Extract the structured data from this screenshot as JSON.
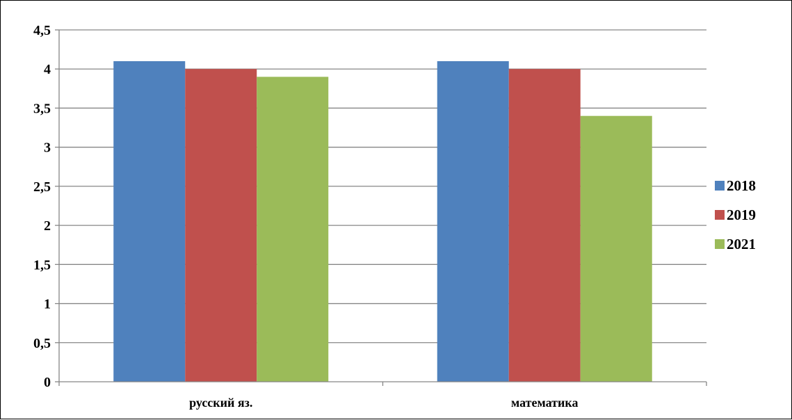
{
  "chart_data": {
    "type": "bar",
    "title": "",
    "xlabel": "",
    "ylabel": "",
    "categories": [
      "русский яз.",
      "математика"
    ],
    "series": [
      {
        "name": "2018",
        "values": [
          4.1,
          4.1
        ],
        "color": "#4F81BD"
      },
      {
        "name": "2019",
        "values": [
          4.0,
          4.0
        ],
        "color": "#C0504D"
      },
      {
        "name": "2021",
        "values": [
          3.9,
          3.4
        ],
        "color": "#9BBB59"
      }
    ],
    "ylim": [
      0,
      4.5
    ],
    "yticks": [
      "0",
      "0,5",
      "1",
      "1,5",
      "2",
      "2,5",
      "3",
      "3,5",
      "4",
      "4,5"
    ],
    "grid": true,
    "legend_position": "right",
    "gridline_color": "#868686"
  }
}
